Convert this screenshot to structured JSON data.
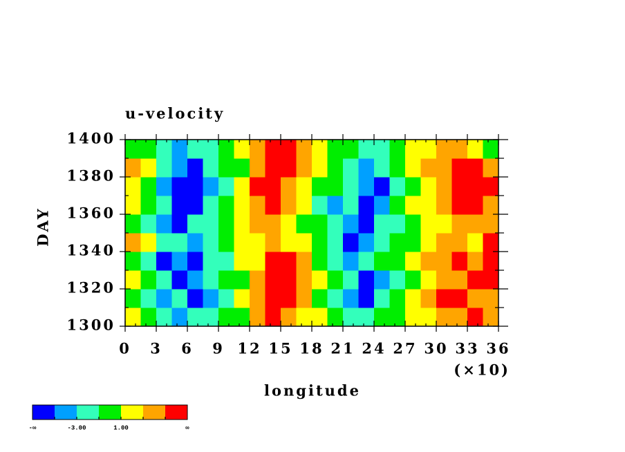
{
  "chart_data": {
    "type": "heatmap",
    "title": "u-velocity",
    "x_label": "longitude",
    "x_multiplier": "(×10)",
    "y_label": "DAY",
    "xlim": [
      0,
      36
    ],
    "ylim": [
      1300,
      1400
    ],
    "xticks": [
      0,
      3,
      6,
      9,
      12,
      15,
      18,
      21,
      24,
      27,
      30,
      33,
      36
    ],
    "xminorticks": [
      1,
      2,
      4,
      5,
      7,
      8,
      10,
      11,
      13,
      14,
      16,
      17,
      19,
      20,
      22,
      23,
      25,
      26,
      28,
      29,
      31,
      32,
      34,
      35
    ],
    "yticks": [
      1300,
      1320,
      1340,
      1360,
      1380,
      1400
    ],
    "yminorticks": [
      1310,
      1330,
      1350,
      1370,
      1390
    ],
    "x_edges": [
      0,
      1.5,
      3,
      4.5,
      6,
      7.5,
      9,
      10.5,
      12,
      13.5,
      15,
      16.5,
      18,
      19.5,
      21,
      22.5,
      24,
      25.5,
      27,
      28.5,
      30,
      31.5,
      33,
      34.5,
      36
    ],
    "y_edges": [
      1300,
      1310,
      1320,
      1330,
      1340,
      1350,
      1360,
      1370,
      1380,
      1390,
      1400
    ],
    "z": [
      [
        1,
        0,
        -3,
        -4,
        -2,
        -3,
        -1,
        0,
        3,
        6,
        4,
        2,
        1,
        -1,
        -2,
        -3,
        -1,
        0,
        1,
        2,
        4,
        3,
        5,
        4
      ],
      [
        0,
        -2,
        -4,
        -3,
        -5.5,
        -4,
        -2,
        1,
        4,
        5,
        6,
        3,
        0,
        -2,
        -4,
        -5.5,
        -3,
        -1,
        2,
        3,
        5,
        6,
        4,
        3
      ],
      [
        2,
        -1,
        -3,
        -5.5,
        -4,
        -3,
        -1,
        0,
        3,
        6,
        5,
        4,
        1,
        -1,
        -3,
        -5.5,
        -4,
        -2,
        0,
        2,
        4,
        3,
        5,
        6
      ],
      [
        -1,
        -3,
        -5.5,
        -4,
        -6,
        -3,
        -2,
        1,
        2,
        5,
        6,
        3,
        0,
        -2,
        -4,
        -3,
        -1,
        0,
        1,
        3,
        3,
        5,
        4,
        5
      ],
      [
        3,
        1,
        -2,
        -3,
        -4,
        -2,
        -1,
        2,
        1,
        3,
        2,
        1,
        -1,
        -3,
        -5.5,
        -4,
        -2,
        -1,
        0,
        2,
        3,
        4,
        2,
        5
      ],
      [
        0,
        -2,
        -4,
        -5.5,
        -3,
        -2,
        0,
        1,
        3,
        4,
        2,
        0,
        -1,
        -3,
        -4,
        -5.5,
        -3,
        -2,
        0,
        1,
        2,
        3,
        4,
        3
      ],
      [
        1,
        -1,
        -3,
        -6,
        -5.5,
        -3,
        -1,
        2,
        4,
        5,
        3,
        1,
        -2,
        -4,
        -3,
        -5.5,
        -4,
        -1,
        1,
        2,
        4,
        5,
        6,
        4
      ],
      [
        2,
        0,
        -4,
        -5.5,
        -6,
        -4,
        -2,
        1,
        5,
        6,
        4,
        2,
        0,
        -1,
        -3,
        -4,
        -5.5,
        -2,
        0,
        2,
        3,
        5,
        6,
        5
      ],
      [
        3,
        1,
        -3,
        -4,
        -5.5,
        -3,
        -1,
        0,
        4,
        6,
        5,
        3,
        1,
        -1,
        -2,
        -4,
        -3,
        -1,
        1,
        3,
        4,
        6,
        5,
        3
      ],
      [
        0,
        -1,
        -2,
        -4,
        -3,
        -2,
        0,
        2,
        3,
        5,
        6,
        4,
        2,
        0,
        -1,
        -3,
        -2,
        0,
        2,
        1,
        3,
        4,
        2,
        0
      ]
    ],
    "colorbar": {
      "bounds": [
        -5,
        -3,
        -1,
        1,
        3,
        5
      ],
      "colors": [
        "#0000ff",
        "#00a0ff",
        "#33ffbb",
        "#00ee00",
        "#ffff00",
        "#ffa500",
        "#ff0000"
      ],
      "ticks": [
        {
          "value": -3,
          "label": "-3.00"
        },
        {
          "value": 1,
          "label": "1.00"
        }
      ],
      "ends": [
        "-∞",
        "∞"
      ]
    }
  }
}
